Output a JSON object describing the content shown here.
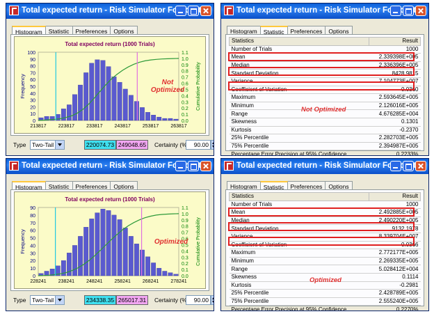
{
  "windows": [
    {
      "title": "Total expected return - Risk Simulator Forecast",
      "tabs": [
        "Histogram",
        "Statistic",
        "Preferences",
        "Options"
      ],
      "active_tab": "Histogram",
      "note": "Not Optimized",
      "chart_data": {
        "type": "bar",
        "title": "Total expected return (1000 Trials)",
        "ylabel": "Frequency",
        "y2label": "Cumulative Probability",
        "xticks": [
          "213817",
          "223817",
          "233817",
          "243817",
          "253817",
          "263817"
        ],
        "yticks": [
          "0",
          "10",
          "20",
          "30",
          "40",
          "50",
          "60",
          "70",
          "80",
          "90",
          "100"
        ],
        "y2ticks": [
          "0.0",
          "0.1",
          "0.2",
          "0.3",
          "0.4",
          "0.5",
          "0.6",
          "0.7",
          "0.8",
          "0.9",
          "1.0",
          "1.1"
        ],
        "ylim": [
          0,
          100
        ],
        "values": [
          4,
          6,
          6,
          9,
          17,
          23,
          38,
          52,
          70,
          84,
          89,
          88,
          79,
          64,
          56,
          46,
          37,
          28,
          19,
          12,
          8,
          5,
          3,
          3,
          2
        ],
        "certainty_lines": [
          220074.73,
          249048.65
        ]
      },
      "type_label": "Type",
      "type_value": "Two-Tail",
      "left_value": "220074.73",
      "right_value": "249048.65",
      "certainty_label": "Certainty (%)",
      "certainty_value": "90.00"
    },
    {
      "title": "Total expected return - Risk Simulator Forecast",
      "tabs": [
        "Histogram",
        "Statistic",
        "Preferences",
        "Options"
      ],
      "active_tab": "Statistic",
      "note": "Not Optimized",
      "stat_header": [
        "Statistics",
        "Result"
      ],
      "rows": [
        [
          "Number of Trials",
          "1000"
        ],
        [
          "Mean",
          "2.339398E+005"
        ],
        [
          "Median",
          "2.336396E+005"
        ],
        [
          "Standard Deviation",
          "8428.9815"
        ],
        [
          "Variance",
          "7.104773E+007"
        ],
        [
          "Coefficient of Variation",
          "0.0360"
        ],
        [
          "Maximum",
          "2.593645E+005"
        ],
        [
          "Minimum",
          "2.126016E+005"
        ],
        [
          "Range",
          "4.676285E+004"
        ],
        [
          "Skewness",
          "0.1301"
        ],
        [
          "Kurtosis",
          "-0.2370"
        ],
        [
          "25% Percentile",
          "2.282703E+005"
        ],
        [
          "75% Percentile",
          "2.394987E+005"
        ],
        [
          "Percentage Error Precision at 95% Confidence",
          "0.2233%"
        ]
      ]
    },
    {
      "title": "Total expected return - Risk Simulator Forecast",
      "tabs": [
        "Histogram",
        "Statistic",
        "Preferences",
        "Options"
      ],
      "active_tab": "Histogram",
      "note": "Optimized",
      "chart_data": {
        "type": "bar",
        "title": "Total expected return (1000 Trials)",
        "ylabel": "Frequency",
        "y2label": "Cumulative Probability",
        "xticks": [
          "228241",
          "238241",
          "248241",
          "258241",
          "268241",
          "278241"
        ],
        "yticks": [
          "0",
          "10",
          "20",
          "30",
          "40",
          "50",
          "60",
          "70",
          "80",
          "90"
        ],
        "y2ticks": [
          "0.0",
          "0.1",
          "0.2",
          "0.3",
          "0.4",
          "0.5",
          "0.6",
          "0.7",
          "0.8",
          "0.9",
          "1.0",
          "1.1"
        ],
        "ylim": [
          0,
          90
        ],
        "values": [
          3,
          6,
          9,
          13,
          20,
          30,
          40,
          52,
          64,
          75,
          83,
          88,
          86,
          80,
          74,
          63,
          52,
          42,
          34,
          25,
          17,
          10,
          6,
          4,
          2
        ],
        "certainty_lines": [
          234338.35,
          265017.31
        ]
      },
      "type_label": "Type",
      "type_value": "Two-Tail",
      "left_value": "234338.35",
      "right_value": "265017.31",
      "certainty_label": "Certainty (%)",
      "certainty_value": "90.00"
    },
    {
      "title": "Total expected return - Risk Simulator Forecast",
      "tabs": [
        "Histogram",
        "Statistic",
        "Preferences",
        "Options"
      ],
      "active_tab": "Statistic",
      "note": "Optimized",
      "stat_header": [
        "Statistics",
        "Result"
      ],
      "rows": [
        [
          "Number of Trials",
          "1000"
        ],
        [
          "Mean",
          "2.492885E+005"
        ],
        [
          "Median",
          "2.490220E+005"
        ],
        [
          "Standard Deviation",
          "9132.1978"
        ],
        [
          "Variance",
          "8.339704E+007"
        ],
        [
          "Coefficient of Variation",
          "0.0366"
        ],
        [
          "Maximum",
          "2.772177E+005"
        ],
        [
          "Minimum",
          "2.269335E+005"
        ],
        [
          "Range",
          "5.028412E+004"
        ],
        [
          "Skewness",
          "0.1114"
        ],
        [
          "Kurtosis",
          "-0.2981"
        ],
        [
          "25% Percentile",
          "2.428789E+005"
        ],
        [
          "75% Percentile",
          "2.555240E+005"
        ],
        [
          "Percentage Error Precision at 95% Confidence",
          "0.2270%"
        ]
      ]
    }
  ]
}
